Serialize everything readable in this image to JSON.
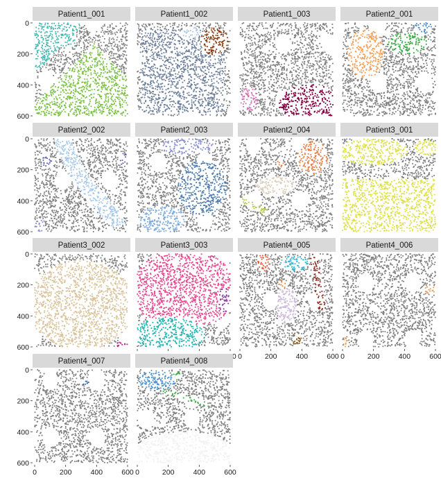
{
  "chart_data": {
    "type": "scatter",
    "layout": "facet-grid",
    "ncol": 4,
    "xlim": [
      0,
      600
    ],
    "ylim": [
      600,
      0
    ],
    "x_ticks": [
      "0",
      "200",
      "400",
      "600"
    ],
    "y_ticks": [
      "0",
      "200",
      "400",
      "600"
    ],
    "background_point_color": "#808080",
    "x_axis_shown_under": [
      "Patient3_003",
      "Patient4_005",
      "Patient4_006",
      "Patient4_007",
      "Patient4_008"
    ],
    "panels": [
      {
        "title": "Patient1_001",
        "regions": [
          {
            "color": "#45b8b0",
            "shape": "poly",
            "pts": [
              [
                10,
                5
              ],
              [
                600,
                5
              ],
              [
                600,
                600
              ],
              [
                10,
                600
              ]
            ],
            "clip": "tl",
            "density": 0.9
          },
          {
            "color": "#7ac143",
            "shape": "tri_br"
          }
        ]
      },
      {
        "title": "Patient1_002",
        "regions": [
          {
            "color": "#6d7f9a",
            "shape": "rect",
            "x": [
              20,
              560
            ],
            "y": [
              40,
              580
            ]
          },
          {
            "color": "#8b3a12",
            "shape": "ellipse",
            "c": [
              500,
              120
            ],
            "r": [
              90,
              90
            ]
          },
          {
            "color": "#a9c5e8",
            "shape": "ellipse",
            "c": [
              350,
              60
            ],
            "r": [
              60,
              40
            ]
          }
        ]
      },
      {
        "title": "Patient1_003",
        "regions": [
          {
            "color": "#800040",
            "shape": "ellipse",
            "c": [
              450,
              520
            ],
            "r": [
              200,
              120
            ]
          },
          {
            "color": "#d070b0",
            "shape": "ellipse",
            "c": [
              60,
              490
            ],
            "r": [
              60,
              80
            ]
          }
        ]
      },
      {
        "title": "Patient2_001",
        "regions": [
          {
            "color": "#f29f5b",
            "shape": "ellipse",
            "c": [
              150,
              200
            ],
            "r": [
              120,
              160
            ]
          },
          {
            "color": "#3aa845",
            "shape": "ellipse",
            "c": [
              420,
              130
            ],
            "r": [
              130,
              70
            ]
          },
          {
            "color": "#4a86c7",
            "shape": "ellipse",
            "c": [
              520,
              30
            ],
            "r": [
              60,
              40
            ]
          }
        ]
      },
      {
        "title": "Patient2_002",
        "regions": [
          {
            "color": "#a5c8ea",
            "shape": "band",
            "pts": [
              [
                180,
                10
              ],
              [
                260,
                200
              ],
              [
                380,
                360
              ],
              [
                520,
                520
              ]
            ],
            "w": 110
          },
          {
            "color": "#5a5fb0",
            "shape": "ellipse",
            "c": [
              570,
              130
            ],
            "r": [
              30,
              40
            ]
          },
          {
            "color": "#5a5fb0",
            "shape": "ellipse",
            "c": [
              80,
              150
            ],
            "r": [
              40,
              40
            ]
          },
          {
            "color": "#8c8cd0",
            "shape": "ellipse",
            "c": [
              30,
              560
            ],
            "r": [
              40,
              50
            ]
          }
        ]
      },
      {
        "title": "Patient2_003",
        "regions": [
          {
            "color": "#4e7bad",
            "shape": "ellipse",
            "c": [
              420,
              320
            ],
            "r": [
              160,
              180
            ]
          },
          {
            "color": "#7aa9dc",
            "shape": "ellipse",
            "c": [
              160,
              520
            ],
            "r": [
              150,
              90
            ]
          },
          {
            "color": "#8a8fd0",
            "shape": "ellipse",
            "c": [
              320,
              50
            ],
            "r": [
              180,
              50
            ]
          }
        ]
      },
      {
        "title": "Patient2_004",
        "regions": [
          {
            "color": "#e1814a",
            "shape": "ellipse",
            "c": [
              470,
              120
            ],
            "r": [
              100,
              110
            ]
          },
          {
            "color": "#d8ccb8",
            "shape": "ellipse",
            "c": [
              230,
              300
            ],
            "r": [
              130,
              60
            ]
          },
          {
            "color": "#b5c84a",
            "shape": "band",
            "pts": [
              [
                20,
                400
              ],
              [
                160,
                470
              ]
            ],
            "w": 40
          },
          {
            "color": "#e1814a",
            "shape": "ellipse",
            "c": [
              260,
              160
            ],
            "r": [
              25,
              25
            ]
          }
        ]
      },
      {
        "title": "Patient3_001",
        "regions": [
          {
            "color": "#dde04a",
            "shape": "rect",
            "x": [
              0,
              600
            ],
            "y": [
              260,
              600
            ]
          },
          {
            "color": "#dde04a",
            "shape": "ellipse",
            "c": [
              200,
              80
            ],
            "r": [
              220,
              90
            ]
          },
          {
            "color": "#dde04a",
            "shape": "ellipse",
            "c": [
              540,
              60
            ],
            "r": [
              80,
              50
            ]
          }
        ]
      },
      {
        "title": "Patient3_002",
        "regions": [
          {
            "color": "#d8c39a",
            "shape": "ellipse",
            "c": [
              300,
              330
            ],
            "r": [
              340,
              290
            ]
          },
          {
            "color": "#c0208a",
            "shape": "ellipse",
            "c": [
              560,
              590
            ],
            "r": [
              40,
              20
            ]
          }
        ]
      },
      {
        "title": "Patient3_003",
        "regions": [
          {
            "color": "#e8448d",
            "shape": "ellipse",
            "c": [
              300,
              230
            ],
            "r": [
              340,
              260
            ]
          },
          {
            "color": "#1fb2b0",
            "shape": "ellipse",
            "c": [
              200,
              520
            ],
            "r": [
              240,
              110
            ]
          },
          {
            "color": "#8a3aa0",
            "shape": "ellipse",
            "c": [
              560,
              300
            ],
            "r": [
              40,
              80
            ]
          }
        ]
      },
      {
        "title": "Patient4_005",
        "regions": [
          {
            "color": "#e75a3a",
            "shape": "ellipse",
            "c": [
              150,
              60
            ],
            "r": [
              40,
              60
            ]
          },
          {
            "color": "#35b8d2",
            "shape": "ellipse",
            "c": [
              350,
              60
            ],
            "r": [
              90,
              50
            ]
          },
          {
            "color": "#8b2a20",
            "shape": "band",
            "pts": [
              [
                480,
                20
              ],
              [
                500,
                180
              ],
              [
                530,
                340
              ]
            ],
            "w": 50
          },
          {
            "color": "#c9b6d9",
            "shape": "ellipse",
            "c": [
              300,
              330
            ],
            "r": [
              70,
              120
            ]
          },
          {
            "color": "#8a5a20",
            "shape": "ellipse",
            "c": [
              370,
              560
            ],
            "r": [
              30,
              50
            ]
          },
          {
            "color": "#e08a3a",
            "shape": "ellipse",
            "c": [
              270,
              200
            ],
            "r": [
              30,
              30
            ]
          }
        ]
      },
      {
        "title": "Patient4_006",
        "regions": [
          {
            "color": "#e0a060",
            "shape": "ellipse",
            "c": [
              560,
              230
            ],
            "r": [
              40,
              30
            ]
          },
          {
            "color": "#e0a060",
            "shape": "ellipse",
            "c": [
              20,
              570
            ],
            "r": [
              20,
              30
            ]
          }
        ]
      },
      {
        "title": "Patient4_007",
        "regions": [
          {
            "color": "#3a6aa8",
            "shape": "ellipse",
            "c": [
              330,
              80
            ],
            "r": [
              25,
              25
            ]
          }
        ]
      },
      {
        "title": "Patient4_008",
        "regions": [
          {
            "color": "#f2f2f2",
            "shape": "ellipse",
            "c": [
              300,
              540
            ],
            "r": [
              330,
              140
            ]
          },
          {
            "color": "#4a90d0",
            "shape": "ellipse",
            "c": [
              130,
              70
            ],
            "r": [
              120,
              60
            ]
          },
          {
            "color": "#3aa845",
            "shape": "band",
            "pts": [
              [
                180,
                140
              ],
              [
                320,
                180
              ],
              [
                450,
                230
              ]
            ],
            "w": 25
          },
          {
            "color": "#3aa845",
            "shape": "ellipse",
            "c": [
              250,
              40
            ],
            "r": [
              30,
              30
            ]
          }
        ]
      }
    ]
  }
}
